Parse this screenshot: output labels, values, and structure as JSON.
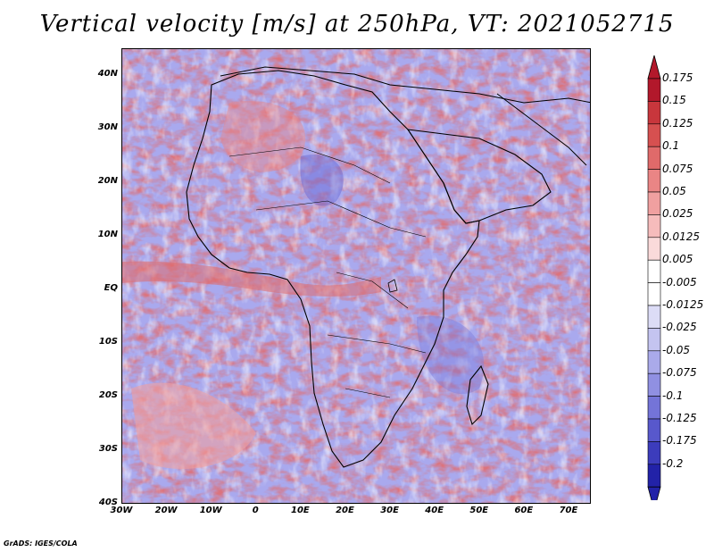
{
  "title": "Vertical velocity [m/s] at 250hPa, VT: 2021052715",
  "credit": "GrADS: IGES/COLA",
  "map": {
    "lon_range": [
      -30,
      75
    ],
    "lat_range": [
      -40,
      45
    ],
    "lat_labels": [
      "40N",
      "30N",
      "20N",
      "10N",
      "EQ",
      "10S",
      "20S",
      "30S",
      "40S"
    ],
    "lat_values": [
      40,
      30,
      20,
      10,
      0,
      -10,
      -20,
      -30,
      -40
    ],
    "lon_labels": [
      "30W",
      "20W",
      "10W",
      "0",
      "10E",
      "20E",
      "30E",
      "40E",
      "50E",
      "60E",
      "70E"
    ],
    "lon_values": [
      -30,
      -20,
      -10,
      0,
      10,
      20,
      30,
      40,
      50,
      60,
      70
    ]
  },
  "colorbar": {
    "labels": [
      "0.175",
      "0.15",
      "0.125",
      "0.1",
      "0.075",
      "0.05",
      "0.025",
      "0.0125",
      "0.005",
      "-0.005",
      "-0.0125",
      "-0.025",
      "-0.05",
      "-0.075",
      "-0.1",
      "-0.125",
      "-0.175",
      "-0.2"
    ],
    "colors": [
      "#b2182b",
      "#c8363c",
      "#d65050",
      "#e06a6a",
      "#ea8585",
      "#f0a0a0",
      "#f6bcbc",
      "#fadada",
      "#ffffff",
      "#ffffff",
      "#dcdcf6",
      "#c4c4f0",
      "#aaaaea",
      "#9090e2",
      "#7474d8",
      "#5858cc",
      "#3c3cbc",
      "#2222a8"
    ]
  }
}
